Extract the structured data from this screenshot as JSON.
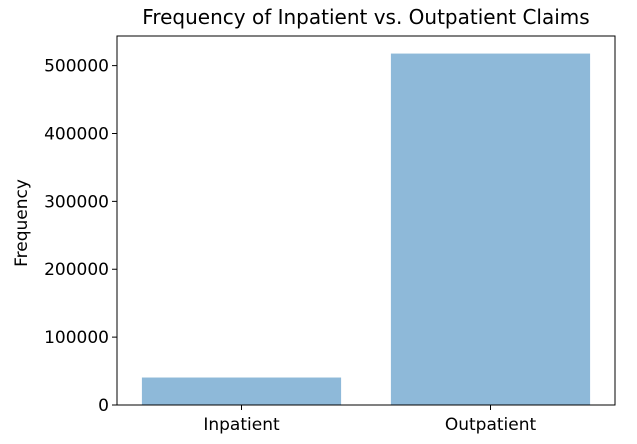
{
  "chart_data": {
    "type": "bar",
    "title": "Frequency of Inpatient vs. Outpatient Claims",
    "xlabel": "",
    "ylabel": "Frequency",
    "categories": [
      "Inpatient",
      "Outpatient"
    ],
    "values": [
      40474,
      517737
    ],
    "ylim": [
      0,
      543631
    ],
    "yticks": [
      0,
      100000,
      200000,
      300000,
      400000,
      500000
    ],
    "bar_color": "#8eb9d9",
    "grid": false,
    "legend": "none"
  }
}
